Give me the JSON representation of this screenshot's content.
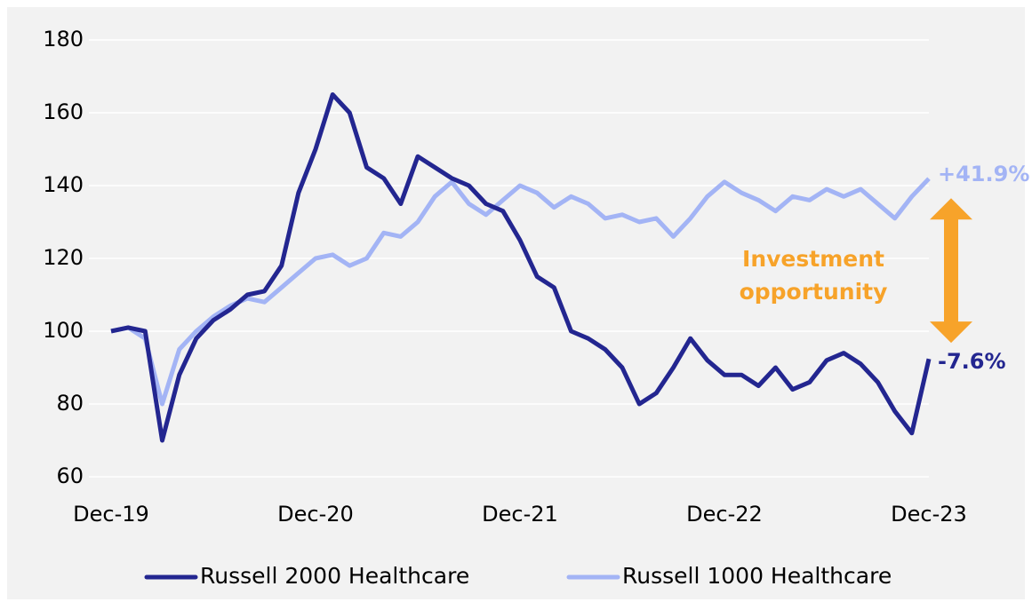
{
  "chart_data": {
    "type": "line",
    "categories": [
      "Dec-19",
      null,
      null,
      null,
      null,
      null,
      null,
      null,
      null,
      null,
      null,
      null,
      "Dec-20",
      null,
      null,
      null,
      null,
      null,
      null,
      null,
      null,
      null,
      null,
      null,
      "Dec-21",
      null,
      null,
      null,
      null,
      null,
      null,
      null,
      null,
      null,
      null,
      null,
      "Dec-22",
      null,
      null,
      null,
      null,
      null,
      null,
      null,
      null,
      null,
      null,
      null,
      "Dec-23"
    ],
    "series": [
      {
        "name": "Russell 2000 Healthcare",
        "color": "#232690",
        "values": [
          100,
          101,
          100,
          70,
          88,
          98,
          103,
          106,
          110,
          111,
          118,
          138,
          150,
          165,
          160,
          145,
          142,
          135,
          148,
          145,
          142,
          140,
          135,
          133,
          125,
          115,
          112,
          100,
          98,
          95,
          90,
          80,
          83,
          90,
          98,
          92,
          88,
          88,
          85,
          90,
          84,
          86,
          92,
          94,
          91,
          86,
          78,
          72,
          92.4
        ]
      },
      {
        "name": "Russell 1000 Healthcare",
        "color": "#a3b4f5",
        "values": [
          100,
          101,
          98,
          80,
          95,
          100,
          104,
          107,
          109,
          108,
          112,
          116,
          120,
          121,
          118,
          120,
          127,
          126,
          130,
          137,
          141,
          135,
          132,
          136,
          140,
          138,
          134,
          137,
          135,
          131,
          132,
          130,
          131,
          126,
          131,
          137,
          141,
          138,
          136,
          133,
          137,
          136,
          139,
          137,
          139,
          135,
          131,
          137,
          141.9
        ]
      }
    ],
    "ylim": [
      60,
      180
    ],
    "yticks": [
      60,
      80,
      100,
      120,
      140,
      160,
      180
    ],
    "grid": true,
    "legend": "bottom",
    "end_labels": [
      "-7.6%",
      "+41.9%"
    ],
    "annotation": {
      "lines": [
        "Investment",
        "opportunity"
      ],
      "color": "#f7a32a"
    }
  }
}
